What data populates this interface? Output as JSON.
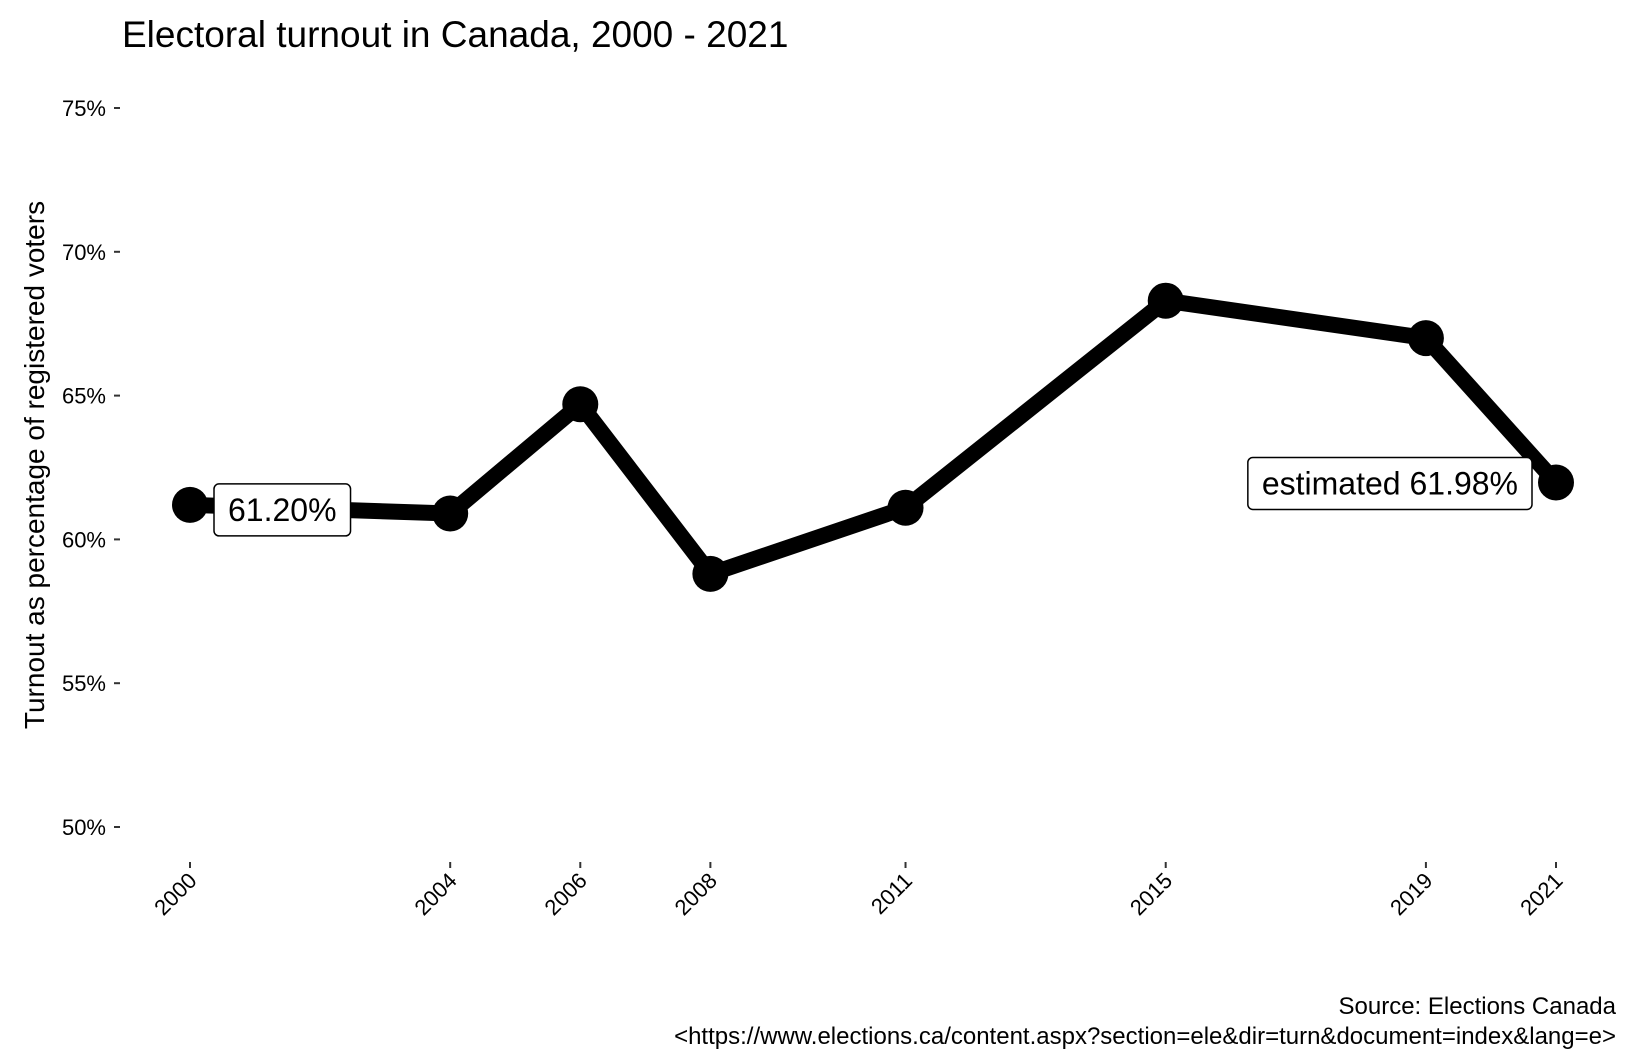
{
  "chart_data": {
    "type": "line",
    "title": "Electoral turnout in Canada, 2000 - 2021",
    "xlabel": "",
    "ylabel": "Turnout as percentage of registered voters",
    "x": [
      2000,
      2004,
      2006,
      2008,
      2011,
      2015,
      2019,
      2021
    ],
    "x_tick_labels": [
      "2000",
      "2004",
      "2006",
      "2008",
      "2011",
      "2015",
      "2019",
      "2021"
    ],
    "series": [
      {
        "values": [
          61.2,
          60.9,
          64.7,
          58.8,
          61.1,
          68.3,
          67.0,
          61.98
        ],
        "color": "#000000"
      }
    ],
    "y_ticks": [
      50,
      55,
      60,
      65,
      70,
      75
    ],
    "y_tick_labels": [
      "50%",
      "55%",
      "60%",
      "65%",
      "70%",
      "75%"
    ],
    "ylim": [
      50,
      75
    ],
    "xlim": [
      2000,
      2021
    ],
    "grid": false,
    "annotations": [
      {
        "x": 2000,
        "y": 61.2,
        "text": "61.20%"
      },
      {
        "x": 2021,
        "y": 61.98,
        "text": "estimated 61.98%"
      }
    ],
    "caption": [
      "Source: Elections Canada",
      "<https://www.elections.ca/content.aspx?section=ele&dir=turn&document=index&lang=e>"
    ]
  }
}
